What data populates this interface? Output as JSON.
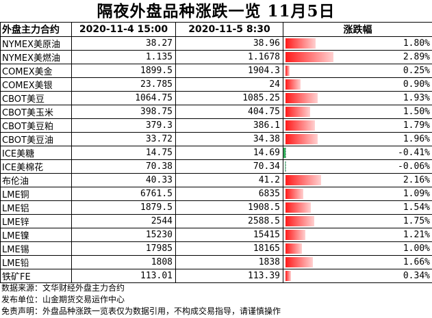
{
  "title": "隔夜外盘品种涨跌一览 11月5日",
  "headers": {
    "name": "外盘主力合约",
    "date1": "2020-11-4 15:00",
    "date2": "2020-11-5 8:30",
    "change": "涨跌幅"
  },
  "chart_data": {
    "type": "table",
    "rows": [
      {
        "name": "NYMEX美原油",
        "prev": "38.27",
        "curr": "38.96",
        "pct": 1.8,
        "pct_text": "1.80%"
      },
      {
        "name": "NYMEX美燃油",
        "prev": "1.135",
        "curr": "1.1678",
        "pct": 2.89,
        "pct_text": "2.89%"
      },
      {
        "name": "COMEX美金",
        "prev": "1899.5",
        "curr": "1904.3",
        "pct": 0.25,
        "pct_text": "0.25%"
      },
      {
        "name": "COMEX美银",
        "prev": "23.785",
        "curr": "24",
        "pct": 0.9,
        "pct_text": "0.90%"
      },
      {
        "name": "CBOT美豆",
        "prev": "1064.75",
        "curr": "1085.25",
        "pct": 1.93,
        "pct_text": "1.93%"
      },
      {
        "name": "CBOT美玉米",
        "prev": "398.75",
        "curr": "404.75",
        "pct": 1.5,
        "pct_text": "1.50%"
      },
      {
        "name": "CBOT美豆粕",
        "prev": "379.3",
        "curr": "386.1",
        "pct": 1.79,
        "pct_text": "1.79%"
      },
      {
        "name": "CBOT美豆油",
        "prev": "33.72",
        "curr": "34.38",
        "pct": 1.96,
        "pct_text": "1.96%"
      },
      {
        "name": "ICE美糖",
        "prev": "14.75",
        "curr": "14.69",
        "pct": -0.41,
        "pct_text": "-0.41%"
      },
      {
        "name": "ICE美棉花",
        "prev": "70.38",
        "curr": "70.34",
        "pct": -0.06,
        "pct_text": "-0.06%"
      },
      {
        "name": "布伦油",
        "prev": "40.33",
        "curr": "41.2",
        "pct": 2.16,
        "pct_text": "2.16%"
      },
      {
        "name": "LME铜",
        "prev": "6761.5",
        "curr": "6835",
        "pct": 1.09,
        "pct_text": "1.09%"
      },
      {
        "name": "LME铝",
        "prev": "1879.5",
        "curr": "1908.5",
        "pct": 1.54,
        "pct_text": "1.54%"
      },
      {
        "name": "LME锌",
        "prev": "2544",
        "curr": "2588.5",
        "pct": 1.75,
        "pct_text": "1.75%"
      },
      {
        "name": "LME镍",
        "prev": "15230",
        "curr": "15415",
        "pct": 1.21,
        "pct_text": "1.21%"
      },
      {
        "name": "LME锡",
        "prev": "17985",
        "curr": "18165",
        "pct": 1.0,
        "pct_text": "1.00%"
      },
      {
        "name": "LME铅",
        "prev": "1808",
        "curr": "1838",
        "pct": 1.66,
        "pct_text": "1.66%"
      },
      {
        "name": "铁矿FE",
        "prev": "113.01",
        "curr": "113.39",
        "pct": 0.34,
        "pct_text": "0.34%"
      }
    ],
    "bar_max_pct": 2.89
  },
  "footer": {
    "source": "数据来源：文华财经外盘主力合约",
    "publisher": "发布单位：山金期货交易运作中心",
    "disclaimer": "免责声明：外盘品种涨跌一览表仅为数据引用，不构成交易指导，请谨慎操作"
  },
  "colors": {
    "up": "#ff1a1a",
    "down": "#1aa84a"
  }
}
